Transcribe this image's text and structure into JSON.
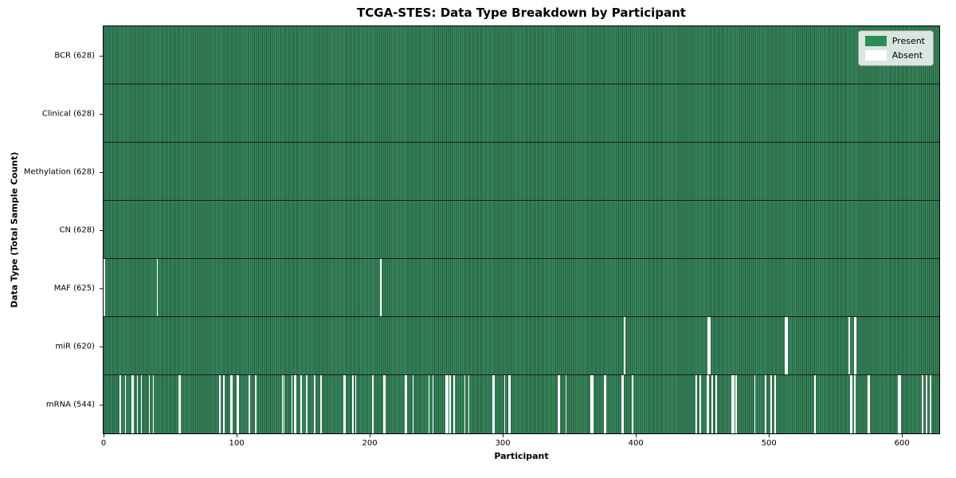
{
  "title": "TCGA-STES: Data Type Breakdown by Participant",
  "legend": {
    "present_label": "Present",
    "absent_label": "Absent"
  },
  "colors": {
    "present": "#2e8b57",
    "present_fill": "#35855a",
    "absent": "#ffffff",
    "row_separator": "#1a1a1a",
    "axis": "#000000"
  },
  "chart_data": {
    "type": "heatmap",
    "title": "TCGA-STES: Data Type Breakdown by Participant",
    "xlabel": "Participant",
    "ylabel": "Data Type (Total Sample Count)",
    "legend_entries": [
      "Present",
      "Absent"
    ],
    "legend_position": "upper right",
    "grid": false,
    "x_ticks": [
      0,
      100,
      200,
      300,
      400,
      500,
      600
    ],
    "x_range": [
      0,
      628
    ],
    "n_participants": 628,
    "cell_values": "binary present/absent per participant per data type",
    "rows": [
      {
        "label": "BCR (628)",
        "data_type": "BCR",
        "present_count": 628,
        "absent_participants": []
      },
      {
        "label": "Clinical (628)",
        "data_type": "Clinical",
        "present_count": 628,
        "absent_participants": []
      },
      {
        "label": "Methylation (628)",
        "data_type": "Methylation",
        "present_count": 628,
        "absent_participants": []
      },
      {
        "label": "CN (628)",
        "data_type": "CN",
        "present_count": 628,
        "absent_participants": []
      },
      {
        "label": "MAF (625)",
        "data_type": "MAF",
        "present_count": 625,
        "absent_participants": [
          0,
          40,
          208
        ]
      },
      {
        "label": "miR (620)",
        "data_type": "miR",
        "present_count": 620,
        "absent_participants": [
          391,
          454,
          455,
          512,
          513,
          560,
          564,
          565
        ]
      },
      {
        "label": "mRNA (544)",
        "data_type": "mRNA",
        "present_count": 544,
        "absent_participants": [
          12,
          16,
          21,
          22,
          25,
          28,
          34,
          37,
          56,
          57,
          87,
          90,
          95,
          96,
          100,
          101,
          109,
          114,
          134,
          135,
          141,
          143,
          144,
          148,
          152,
          158,
          163,
          180,
          181,
          187,
          189,
          202,
          210,
          211,
          226,
          227,
          232,
          244,
          247,
          257,
          258,
          260,
          263,
          271,
          274,
          292,
          293,
          301,
          304,
          305,
          341,
          342,
          347,
          366,
          367,
          376,
          377,
          389,
          390,
          397,
          445,
          448,
          453,
          454,
          457,
          460,
          472,
          473,
          475,
          489,
          497,
          501,
          504,
          534,
          561,
          562,
          564,
          574,
          575,
          597,
          598,
          615,
          618,
          621
        ]
      }
    ]
  }
}
